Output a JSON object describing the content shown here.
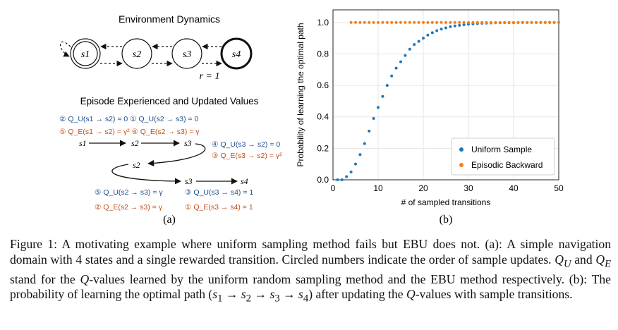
{
  "panel_a": {
    "title": "Environment Dynamics",
    "states": [
      "s1",
      "s2",
      "s3",
      "s4"
    ],
    "reward_label": "r = 1",
    "episode_title": "Episode Experienced and Updated Values",
    "updates": {
      "row1_blue": "② Q_U(s1 → s2) = 0  ① Q_U(s2 → s3) = 0",
      "row1_orange": "⑤ Q_E(s1 → s2) = γ²  ④ Q_E(s2 → s3) = γ",
      "mid_blue": "④ Q_U(s3 → s2) = 0",
      "mid_orange": "③ Q_E(s3 → s2) = γ²",
      "bot_blue_left": "⑤ Q_U(s2 → s3) = γ",
      "bot_blue_right": "③ Q_U(s3 → s4) = 1",
      "bot_orange_left": "② Q_E(s2 → s3) = γ",
      "bot_orange_right": "① Q_E(s3 → s4) = 1"
    },
    "label": "(a)"
  },
  "chart_data": {
    "type": "scatter",
    "xlabel": "# of sampled transitions",
    "ylabel": "Probability of learning the optimal path",
    "xlim": [
      0,
      50
    ],
    "ylim": [
      0,
      1.08
    ],
    "xticks": [
      0,
      10,
      20,
      30,
      40,
      50
    ],
    "yticks": [
      0.0,
      0.2,
      0.4,
      0.6,
      0.8,
      1.0
    ],
    "grid": true,
    "legend_position": "bottom-right",
    "series": [
      {
        "name": "Uniform Sample",
        "color": "#1f77b4",
        "x": [
          1,
          2,
          3,
          4,
          5,
          6,
          7,
          8,
          9,
          10,
          11,
          12,
          13,
          14,
          15,
          16,
          17,
          18,
          19,
          20,
          21,
          22,
          23,
          24,
          25,
          26,
          27,
          28,
          29,
          30,
          31,
          32,
          33,
          34,
          35,
          36,
          37,
          38,
          39,
          40,
          41,
          42,
          43,
          44,
          45,
          46,
          47,
          48,
          49,
          50
        ],
        "y": [
          0.0,
          0.0,
          0.02,
          0.05,
          0.1,
          0.16,
          0.23,
          0.31,
          0.39,
          0.46,
          0.53,
          0.6,
          0.66,
          0.71,
          0.75,
          0.79,
          0.83,
          0.86,
          0.88,
          0.9,
          0.92,
          0.935,
          0.948,
          0.958,
          0.966,
          0.973,
          0.978,
          0.982,
          0.986,
          0.989,
          0.991,
          0.993,
          0.995,
          0.996,
          0.997,
          0.998,
          0.998,
          0.999,
          0.999,
          0.999,
          1.0,
          1.0,
          1.0,
          1.0,
          1.0,
          1.0,
          1.0,
          1.0,
          1.0,
          1.0
        ]
      },
      {
        "name": "Episodic Backward",
        "color": "#ff7f0e",
        "x": [
          4,
          5,
          6,
          7,
          8,
          9,
          10,
          11,
          12,
          13,
          14,
          15,
          16,
          17,
          18,
          19,
          20,
          21,
          22,
          23,
          24,
          25,
          26,
          27,
          28,
          29,
          30,
          31,
          32,
          33,
          34,
          35,
          36,
          37,
          38,
          39,
          40,
          41,
          42,
          43,
          44,
          45,
          46,
          47,
          48,
          49,
          50
        ],
        "y": [
          1,
          1,
          1,
          1,
          1,
          1,
          1,
          1,
          1,
          1,
          1,
          1,
          1,
          1,
          1,
          1,
          1,
          1,
          1,
          1,
          1,
          1,
          1,
          1,
          1,
          1,
          1,
          1,
          1,
          1,
          1,
          1,
          1,
          1,
          1,
          1,
          1,
          1,
          1,
          1,
          1,
          1,
          1,
          1,
          1,
          1,
          1
        ]
      }
    ],
    "panel_label": "(b)"
  },
  "caption": "Figure 1: A motivating example where uniform sampling method fails but EBU does not. (a): A simple navigation domain with 4 states and a single rewarded transition. Circled numbers indicate the order of sample updates. Q_U and Q_E stand for the Q-values learned by the uniform random sampling method and the EBU method respectively. (b): The probability of learning the optimal path (s1 → s2 → s3 → s4) after updating the Q-values with sample transitions."
}
